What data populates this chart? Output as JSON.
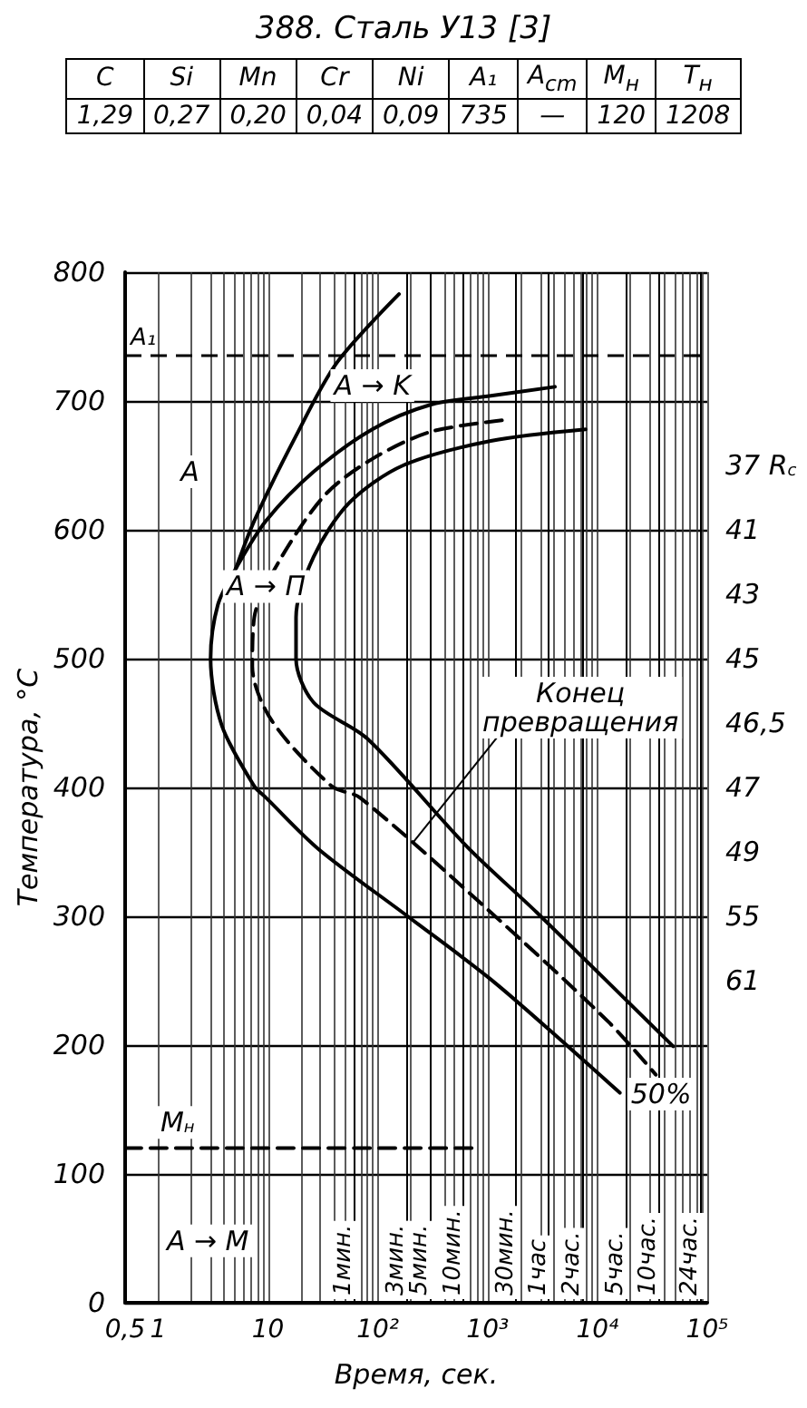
{
  "chart_data": [
    {
      "type": "other",
      "title": "388. Сталь У13 [3]",
      "categories": [
        "C",
        "Si",
        "Mn",
        "Cr",
        "Ni",
        "A₁",
        "A$_{cm}$",
        "M$_{н}$",
        "T$_{н}$"
      ],
      "value_labels": [
        "1,29",
        "0,27",
        "0,20",
        "0,04",
        "0,09",
        "735",
        "—",
        "120",
        "1208"
      ]
    },
    {
      "type": "line",
      "xlabel": "Время, сек.",
      "ylabel": "Температура, °С",
      "log": "x",
      "grid": true,
      "xlim": [
        0.5,
        100000
      ],
      "ylim": [
        0,
        800
      ],
      "xticks": [
        {
          "value": 0.5,
          "label": "0,5"
        },
        1,
        {
          "value": 2,
          "label": null
        },
        {
          "value": 3,
          "label": null
        },
        {
          "value": 4,
          "label": null
        },
        {
          "value": 5,
          "label": null
        },
        {
          "value": 6,
          "label": null
        },
        {
          "value": 7,
          "label": null
        },
        {
          "value": 8,
          "label": null
        },
        {
          "value": 9,
          "label": null
        },
        10,
        {
          "value": 20,
          "label": null
        },
        {
          "value": 30,
          "label": null
        },
        {
          "value": 40,
          "label": null
        },
        {
          "value": 50,
          "label": null
        },
        {
          "value": 60,
          "label": null
        },
        {
          "value": 70,
          "label": null
        },
        {
          "value": 80,
          "label": null
        },
        {
          "value": 90,
          "label": null
        },
        {
          "value": 100,
          "label": "10²"
        },
        {
          "value": 200,
          "label": null
        },
        {
          "value": 300,
          "label": null
        },
        {
          "value": 400,
          "label": null
        },
        {
          "value": 500,
          "label": null
        },
        {
          "value": 600,
          "label": null
        },
        {
          "value": 700,
          "label": null
        },
        {
          "value": 800,
          "label": null
        },
        {
          "value": 900,
          "label": null
        },
        {
          "value": 1000,
          "label": "10³"
        },
        {
          "value": 2000,
          "label": null
        },
        {
          "value": 3000,
          "label": null
        },
        {
          "value": 4000,
          "label": null
        },
        {
          "value": 5000,
          "label": null
        },
        {
          "value": 6000,
          "label": null
        },
        {
          "value": 7000,
          "label": null
        },
        {
          "value": 8000,
          "label": null
        },
        {
          "value": 9000,
          "label": null
        },
        {
          "value": 10000,
          "label": "10⁴"
        },
        {
          "value": 20000,
          "label": null
        },
        {
          "value": 30000,
          "label": null
        },
        {
          "value": 40000,
          "label": null
        },
        {
          "value": 50000,
          "label": null
        },
        {
          "value": 60000,
          "label": null
        },
        {
          "value": 70000,
          "label": null
        },
        {
          "value": 80000,
          "label": null
        },
        {
          "value": 90000,
          "label": null
        },
        {
          "value": 100000,
          "label": "10⁵"
        }
      ],
      "yticks": [
        0,
        100,
        200,
        300,
        400,
        500,
        600,
        700,
        800
      ],
      "series": [
        {
          "color": "#000000",
          "line_style": "solid",
          "x": [
            156,
            42.6,
            18,
            7.5,
            5.1
          ],
          "values": [
            783,
            730,
            673,
            607,
            570
          ]
        },
        {
          "color": "#000000",
          "line_style": "solid",
          "x": [
            4100,
            1070,
            300,
            89,
            26,
            9.6,
            5.1,
            3.5,
            3.0,
            3.8,
            7.5,
            9.6,
            29,
            187,
            1070,
            5400,
            16000
          ],
          "values": [
            711,
            704,
            697,
            678,
            645,
            607,
            570,
            542,
            500,
            448,
            401,
            392,
            352,
            300,
            251,
            199,
            163
          ]
        },
        {
          "color": "#000000",
          "line_style": "dashed",
          "x": [
            1350,
            300,
            89,
            33,
            12.5,
            7.5,
            7.2,
            10.8,
            38,
            69,
            1070,
            12600,
            34000
          ],
          "values": [
            685,
            676,
            655,
            627,
            575,
            532,
            494,
            452,
            401,
            392,
            303,
            218,
            177
          ]
        },
        {
          "color": "#000000",
          "line_style": "solid",
          "x": [
            7800,
            1070,
            170,
            55,
            26,
            18,
            18,
            26,
            80,
            650,
            2800,
            49000
          ],
          "values": [
            678,
            669,
            650,
            621,
            579,
            532,
            500,
            466,
            438,
            354,
            303,
            199
          ]
        },
        {
          "color": "#000000",
          "line_style": "dashed",
          "x": [
            0.5,
            800
          ],
          "values": [
            120,
            120
          ]
        }
      ],
      "ref_lines": [
        {
          "axis": "y",
          "value": 735,
          "label": "A₁",
          "line_style": "dashed"
        },
        {
          "axis": "x",
          "value": 60,
          "label": "1мин."
        },
        {
          "axis": "x",
          "value": 180,
          "label": "3мин."
        },
        {
          "axis": "x",
          "value": 300,
          "label": "5мин."
        },
        {
          "axis": "x",
          "value": 600,
          "label": "10мин."
        },
        {
          "axis": "x",
          "value": 1800,
          "label": "30мин."
        },
        {
          "axis": "x",
          "value": 3600,
          "label": "1час"
        },
        {
          "axis": "x",
          "value": 7200,
          "label": "2час."
        },
        {
          "axis": "x",
          "value": 18000,
          "label": "5час."
        },
        {
          "axis": "x",
          "value": 36000,
          "label": "10час."
        },
        {
          "axis": "x",
          "value": 86400,
          "label": "24час."
        }
      ],
      "annotations": [
        {
          "text": "A",
          "x": 1.95,
          "y": 645
        },
        "A → K",
        {
          "text": "A → П",
          "x": 9.6,
          "y": 556
        },
        "A → M",
        "37 R$_{c}$",
        "41",
        "43",
        "45",
        "46,5",
        "47",
        "49",
        "55",
        "61",
        {
          "text": "M$_{н}$",
          "x": 1.5,
          "y": 140
        },
        {
          "text": "Конец\nпревращения",
          "x": 7000,
          "y": 462
        },
        {
          "text": "50%",
          "x": 38000,
          "y": 162
        }
      ]
    }
  ]
}
